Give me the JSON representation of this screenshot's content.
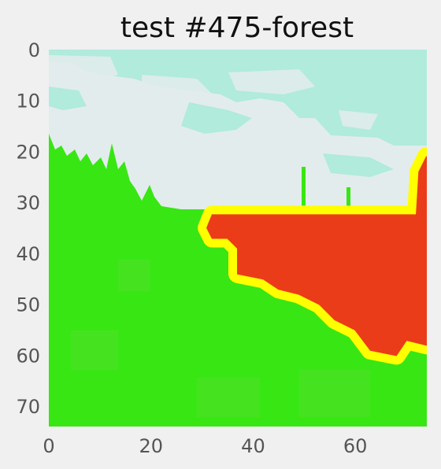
{
  "chart_data": {
    "type": "heatmap",
    "title": "test #475-forest",
    "xlabel": "",
    "ylabel": "",
    "grid": false,
    "xlim": [
      0,
      74
    ],
    "ylim": [
      74,
      0
    ],
    "x_ticks": [
      0,
      20,
      40,
      60
    ],
    "y_ticks": [
      0,
      10,
      20,
      30,
      40,
      50,
      60,
      70
    ],
    "x_tick_labels": [
      "0",
      "20",
      "40",
      "60"
    ],
    "y_tick_labels": [
      "0",
      "10",
      "20",
      "30",
      "40",
      "50",
      "60",
      "70"
    ],
    "grid_size": [
      74,
      74
    ],
    "colors": {
      "background": "#f0f0f0",
      "sky": "#e3ecec",
      "cloud_teal": "#b0ebdc",
      "forest": "#38e614",
      "forest_light": "#52e02a",
      "burn": "#eb3c19",
      "fire_edge": "#ffff00"
    },
    "regions": {
      "sky_band": {
        "rows": [
          0,
          31
        ],
        "color": "sky"
      },
      "forest_area": {
        "rows": [
          17,
          74
        ],
        "color": "forest"
      },
      "burn_polygon_data_coords": [
        [
          32,
          32.5
        ],
        [
          72,
          32.5
        ],
        [
          72.5,
          24
        ],
        [
          74,
          21
        ],
        [
          74,
          58
        ],
        [
          70,
          57
        ],
        [
          68,
          60
        ],
        [
          63,
          59
        ],
        [
          60,
          55
        ],
        [
          56,
          53
        ],
        [
          53,
          50
        ],
        [
          49,
          48
        ],
        [
          45,
          47
        ],
        [
          42,
          45
        ],
        [
          37,
          44
        ],
        [
          37,
          39
        ],
        [
          35,
          37
        ],
        [
          32,
          37
        ],
        [
          31,
          35
        ]
      ]
    }
  }
}
